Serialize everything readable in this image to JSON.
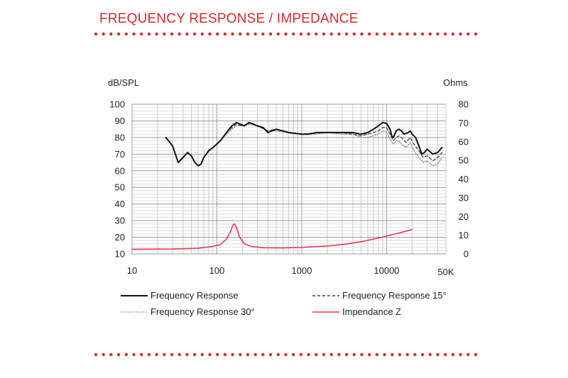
{
  "header": {
    "title": "FREQUENCY RESPONSE / IMPEDANCE",
    "accent_color": "#d42a2a"
  },
  "chart_data": {
    "type": "line",
    "x_scale": "log",
    "xlim": [
      10,
      50000
    ],
    "x_ticks": [
      "10",
      "100",
      "1000",
      "10000",
      "50K"
    ],
    "ylabel": "dB/SPL",
    "ylim": [
      10,
      100
    ],
    "y_ticks": [
      "10",
      "20",
      "30",
      "40",
      "50",
      "60",
      "70",
      "80",
      "90",
      "100"
    ],
    "y2label": "Ohms",
    "y2lim": [
      0,
      80
    ],
    "y2_ticks": [
      "0",
      "10",
      "20",
      "30",
      "40",
      "50",
      "60",
      "70",
      "80"
    ],
    "grid": true,
    "legend_position": "bottom",
    "series": [
      {
        "name": "Frequency Response",
        "axis": "left",
        "color": "#111111",
        "style": "solid",
        "points": [
          [
            25,
            80
          ],
          [
            30,
            75
          ],
          [
            35,
            65
          ],
          [
            40,
            68
          ],
          [
            45,
            71
          ],
          [
            50,
            69
          ],
          [
            55,
            65
          ],
          [
            60,
            63
          ],
          [
            65,
            64
          ],
          [
            70,
            68
          ],
          [
            80,
            72
          ],
          [
            90,
            74
          ],
          [
            110,
            78
          ],
          [
            130,
            83
          ],
          [
            150,
            87
          ],
          [
            170,
            89
          ],
          [
            190,
            88
          ],
          [
            210,
            87
          ],
          [
            240,
            89
          ],
          [
            300,
            87
          ],
          [
            350,
            86
          ],
          [
            400,
            83
          ],
          [
            500,
            85
          ],
          [
            700,
            83
          ],
          [
            1000,
            82
          ],
          [
            1200,
            82
          ],
          [
            1500,
            83
          ],
          [
            2000,
            83
          ],
          [
            3000,
            83
          ],
          [
            4000,
            83
          ],
          [
            5000,
            82
          ],
          [
            6000,
            83
          ],
          [
            7000,
            85
          ],
          [
            8000,
            87
          ],
          [
            9000,
            89
          ],
          [
            10000,
            88.5
          ],
          [
            11000,
            85
          ],
          [
            11500,
            81
          ],
          [
            12000,
            80
          ],
          [
            13000,
            84
          ],
          [
            14000,
            85
          ],
          [
            15000,
            84
          ],
          [
            16000,
            82
          ],
          [
            18000,
            83
          ],
          [
            19000,
            84
          ],
          [
            20000,
            82
          ],
          [
            22000,
            80
          ],
          [
            24000,
            75
          ],
          [
            26000,
            70
          ],
          [
            28000,
            71
          ],
          [
            30000,
            73
          ],
          [
            35000,
            70
          ],
          [
            40000,
            71
          ],
          [
            45000,
            74
          ]
        ]
      },
      {
        "name": "Frequency Response 15°",
        "axis": "left",
        "color": "#444444",
        "style": "dashed",
        "points": [
          [
            130,
            83
          ],
          [
            150,
            86
          ],
          [
            170,
            88
          ],
          [
            200,
            87
          ],
          [
            250,
            89
          ],
          [
            300,
            87
          ],
          [
            400,
            84
          ],
          [
            500,
            85
          ],
          [
            700,
            83
          ],
          [
            1000,
            82
          ],
          [
            1500,
            83
          ],
          [
            2000,
            83
          ],
          [
            3000,
            83
          ],
          [
            4000,
            82
          ],
          [
            5000,
            81
          ],
          [
            6000,
            82
          ],
          [
            7000,
            83
          ],
          [
            8000,
            84
          ],
          [
            9000,
            86
          ],
          [
            10000,
            86
          ],
          [
            11000,
            82
          ],
          [
            12000,
            78
          ],
          [
            13000,
            80
          ],
          [
            14000,
            81
          ],
          [
            15000,
            80
          ],
          [
            17000,
            77
          ],
          [
            19000,
            80
          ],
          [
            21000,
            76
          ],
          [
            24000,
            72
          ],
          [
            27000,
            68
          ],
          [
            30000,
            69
          ],
          [
            35000,
            66
          ],
          [
            40000,
            68
          ],
          [
            45000,
            71
          ]
        ]
      },
      {
        "name": "Frequency Response 30°",
        "axis": "left",
        "color": "#888888",
        "style": "dotted",
        "points": [
          [
            130,
            82
          ],
          [
            150,
            85
          ],
          [
            170,
            87
          ],
          [
            200,
            87
          ],
          [
            250,
            88
          ],
          [
            300,
            87
          ],
          [
            400,
            84
          ],
          [
            500,
            84
          ],
          [
            700,
            83
          ],
          [
            1000,
            82
          ],
          [
            1500,
            82
          ],
          [
            2000,
            83
          ],
          [
            3000,
            82
          ],
          [
            4000,
            82
          ],
          [
            5000,
            80
          ],
          [
            6000,
            80
          ],
          [
            7000,
            81
          ],
          [
            8000,
            82
          ],
          [
            9000,
            84
          ],
          [
            10000,
            83
          ],
          [
            11000,
            79
          ],
          [
            12000,
            76
          ],
          [
            13000,
            78
          ],
          [
            14000,
            78
          ],
          [
            15000,
            76
          ],
          [
            17000,
            74
          ],
          [
            19000,
            77
          ],
          [
            21000,
            72
          ],
          [
            24000,
            68
          ],
          [
            27000,
            65
          ],
          [
            30000,
            66
          ],
          [
            35000,
            63
          ],
          [
            40000,
            64
          ],
          [
            45000,
            68
          ]
        ]
      },
      {
        "name": "Impendance Z",
        "axis": "right",
        "color": "#e8384f",
        "style": "solid",
        "points": [
          [
            10,
            2.5
          ],
          [
            30,
            2.6
          ],
          [
            60,
            3
          ],
          [
            90,
            4
          ],
          [
            110,
            5
          ],
          [
            130,
            8
          ],
          [
            145,
            12
          ],
          [
            155,
            15.5
          ],
          [
            162,
            16
          ],
          [
            170,
            14
          ],
          [
            185,
            9
          ],
          [
            210,
            5.5
          ],
          [
            250,
            4
          ],
          [
            350,
            3.3
          ],
          [
            600,
            3.2
          ],
          [
            1000,
            3.5
          ],
          [
            2000,
            4.2
          ],
          [
            3000,
            5
          ],
          [
            5000,
            6.5
          ],
          [
            8000,
            8.5
          ],
          [
            10000,
            9.5
          ],
          [
            15000,
            11.5
          ],
          [
            20000,
            13
          ]
        ]
      }
    ]
  }
}
